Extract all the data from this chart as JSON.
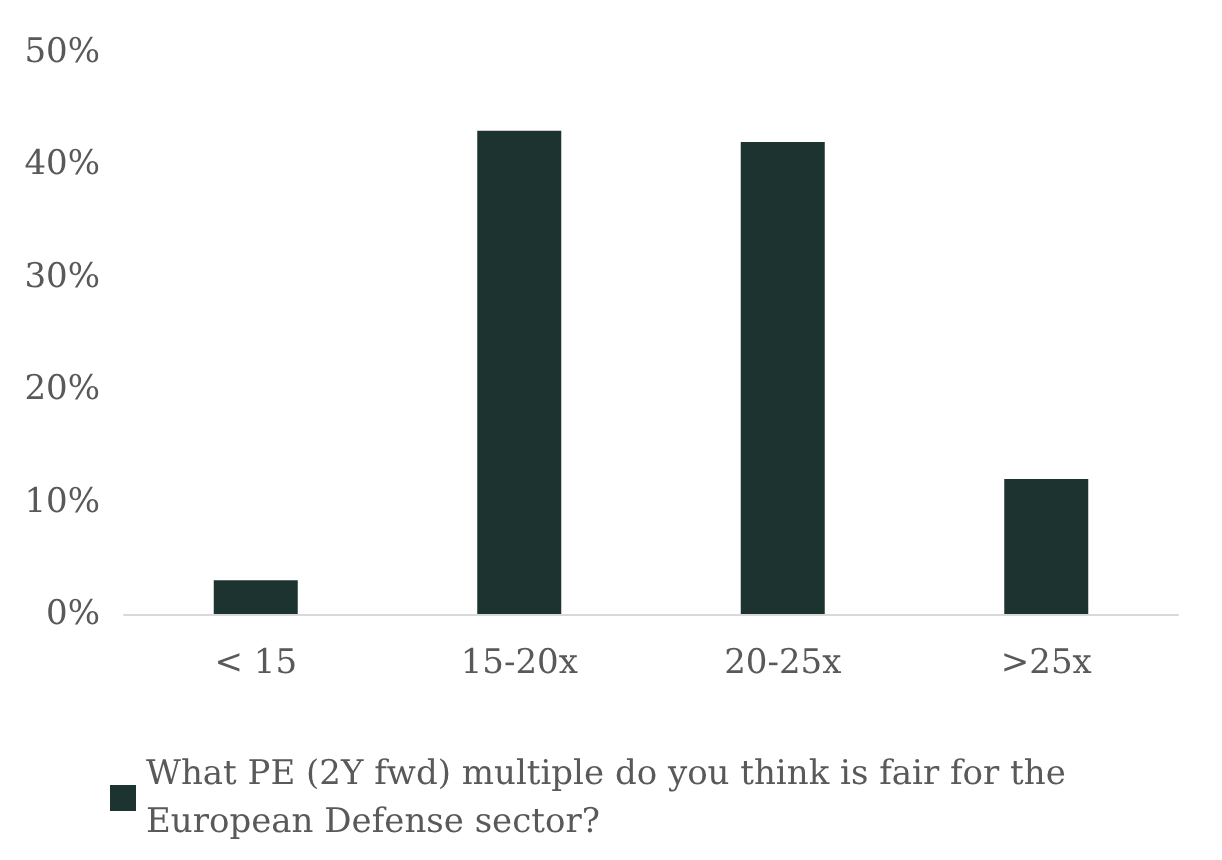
{
  "chart_data": {
    "type": "bar",
    "categories": [
      "< 15",
      "15-20x",
      "20-25x",
      ">25x"
    ],
    "series": [
      {
        "name": "What PE (2Y fwd) multiple do you think is fair for the European Defense sector?",
        "color": "#1c3330",
        "values": [
          3,
          43,
          42,
          12
        ]
      }
    ],
    "ylim": [
      0,
      50
    ],
    "yticks": [
      {
        "value": 0,
        "label": "0%"
      },
      {
        "value": 10,
        "label": "10%"
      },
      {
        "value": 20,
        "label": "20%"
      },
      {
        "value": 30,
        "label": "30%"
      },
      {
        "value": 40,
        "label": "40%"
      },
      {
        "value": 50,
        "label": "50%"
      }
    ],
    "grid": false,
    "legend": "bottom"
  }
}
